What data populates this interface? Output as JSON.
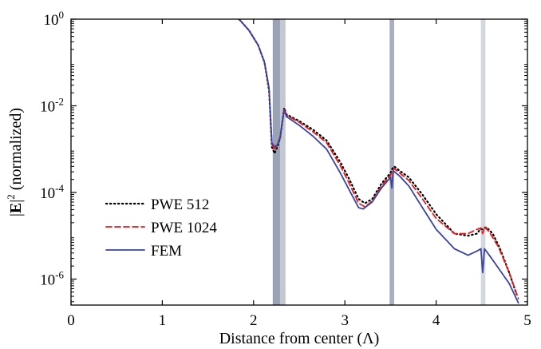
{
  "chart_data": {
    "type": "line",
    "xlabel": "Distance from center (Λ)",
    "ylabel": "|E|² (normalized)",
    "ylabel_parts": {
      "pre": "|",
      "bold": "E",
      "post": "|",
      "sup": "2",
      "suffix": " (normalized)"
    },
    "xlim": [
      0,
      5
    ],
    "ylim_log10": [
      -6.6,
      0
    ],
    "yscale": "log",
    "grid": false,
    "legend_position": "left-middle",
    "x_ticks": [
      {
        "value": 0,
        "label": "0"
      },
      {
        "value": 1,
        "label": "1"
      },
      {
        "value": 2,
        "label": "2"
      },
      {
        "value": 3,
        "label": "3"
      },
      {
        "value": 4,
        "label": "4"
      },
      {
        "value": 5,
        "label": "5"
      }
    ],
    "y_ticks": [
      {
        "exp": 0,
        "base": "10",
        "sup": "0"
      },
      {
        "exp": -2,
        "base": "10",
        "sup": "-2"
      },
      {
        "exp": -4,
        "base": "10",
        "sup": "-4"
      },
      {
        "exp": -6,
        "base": "10",
        "sup": "-6"
      }
    ],
    "shaded_bands": [
      {
        "x0": 2.21,
        "x1": 2.29,
        "color": "#9aa3b3"
      },
      {
        "x0": 2.29,
        "x1": 2.35,
        "color": "#c3c8d1"
      },
      {
        "x0": 3.49,
        "x1": 3.54,
        "color": "#a8b0bd"
      },
      {
        "x0": 4.49,
        "x1": 4.54,
        "color": "#d3d7de"
      }
    ],
    "series": [
      {
        "name": "PWE 512",
        "style": "dotted",
        "color": "#000000",
        "points": [
          [
            0,
            1.0
          ],
          [
            0.3,
            0.96
          ],
          [
            0.6,
            0.88
          ],
          [
            0.9,
            0.76
          ],
          [
            1.2,
            0.59
          ],
          [
            1.5,
            0.38
          ],
          [
            1.7,
            0.2
          ],
          [
            1.85,
            -0.02
          ],
          [
            1.95,
            -0.26
          ],
          [
            2.05,
            -0.6
          ],
          [
            2.12,
            -1.0
          ],
          [
            2.17,
            -1.65
          ],
          [
            2.2,
            -2.95
          ],
          [
            2.23,
            -3.1
          ],
          [
            2.26,
            -2.95
          ],
          [
            2.29,
            -2.75
          ],
          [
            2.31,
            -2.45
          ],
          [
            2.335,
            -2.05
          ],
          [
            2.36,
            -2.2
          ],
          [
            2.5,
            -2.35
          ],
          [
            2.65,
            -2.55
          ],
          [
            2.8,
            -2.8
          ],
          [
            2.95,
            -3.3
          ],
          [
            3.05,
            -3.7
          ],
          [
            3.15,
            -4.15
          ],
          [
            3.22,
            -4.25
          ],
          [
            3.3,
            -4.15
          ],
          [
            3.4,
            -3.8
          ],
          [
            3.5,
            -3.55
          ],
          [
            3.52,
            -3.45
          ],
          [
            3.54,
            -3.4
          ],
          [
            3.6,
            -3.5
          ],
          [
            3.7,
            -3.65
          ],
          [
            3.85,
            -4.05
          ],
          [
            4.0,
            -4.5
          ],
          [
            4.2,
            -4.95
          ],
          [
            4.35,
            -5.0
          ],
          [
            4.45,
            -4.95
          ],
          [
            4.48,
            -4.85
          ],
          [
            4.51,
            -4.85
          ],
          [
            4.55,
            -4.8
          ],
          [
            4.62,
            -4.95
          ],
          [
            4.7,
            -5.3
          ],
          [
            4.8,
            -5.85
          ],
          [
            4.88,
            -6.35
          ]
        ]
      },
      {
        "name": "PWE 1024",
        "style": "dashed",
        "color": "#e41a1c",
        "points": [
          [
            0,
            1.0
          ],
          [
            0.3,
            0.96
          ],
          [
            0.6,
            0.88
          ],
          [
            0.9,
            0.76
          ],
          [
            1.2,
            0.59
          ],
          [
            1.5,
            0.38
          ],
          [
            1.7,
            0.2
          ],
          [
            1.85,
            -0.02
          ],
          [
            1.95,
            -0.26
          ],
          [
            2.05,
            -0.6
          ],
          [
            2.12,
            -1.0
          ],
          [
            2.17,
            -1.6
          ],
          [
            2.2,
            -2.88
          ],
          [
            2.23,
            -3.02
          ],
          [
            2.26,
            -2.9
          ],
          [
            2.29,
            -2.72
          ],
          [
            2.31,
            -2.42
          ],
          [
            2.335,
            -2.07
          ],
          [
            2.36,
            -2.22
          ],
          [
            2.5,
            -2.38
          ],
          [
            2.65,
            -2.6
          ],
          [
            2.8,
            -2.85
          ],
          [
            2.95,
            -3.38
          ],
          [
            3.05,
            -3.8
          ],
          [
            3.15,
            -4.25
          ],
          [
            3.22,
            -4.33
          ],
          [
            3.3,
            -4.2
          ],
          [
            3.4,
            -3.85
          ],
          [
            3.5,
            -3.6
          ],
          [
            3.52,
            -3.5
          ],
          [
            3.54,
            -3.45
          ],
          [
            3.6,
            -3.55
          ],
          [
            3.7,
            -3.72
          ],
          [
            3.85,
            -4.15
          ],
          [
            4.0,
            -4.6
          ],
          [
            4.2,
            -4.95
          ],
          [
            4.35,
            -4.95
          ],
          [
            4.45,
            -4.85
          ],
          [
            4.49,
            -4.82
          ],
          [
            4.51,
            -4.95
          ],
          [
            4.53,
            -4.8
          ],
          [
            4.58,
            -4.9
          ],
          [
            4.68,
            -5.25
          ],
          [
            4.8,
            -5.85
          ],
          [
            4.9,
            -6.45
          ]
        ]
      },
      {
        "name": "FEM",
        "style": "solid",
        "color": "#3a43a3",
        "points": [
          [
            0,
            1.0
          ],
          [
            0.3,
            0.96
          ],
          [
            0.6,
            0.88
          ],
          [
            0.9,
            0.76
          ],
          [
            1.2,
            0.59
          ],
          [
            1.5,
            0.38
          ],
          [
            1.7,
            0.2
          ],
          [
            1.85,
            -0.02
          ],
          [
            1.95,
            -0.26
          ],
          [
            2.05,
            -0.6
          ],
          [
            2.12,
            -1.0
          ],
          [
            2.17,
            -1.6
          ],
          [
            2.2,
            -2.85
          ],
          [
            2.23,
            -2.95
          ],
          [
            2.26,
            -2.9
          ],
          [
            2.29,
            -2.75
          ],
          [
            2.31,
            -2.45
          ],
          [
            2.335,
            -2.1
          ],
          [
            2.36,
            -2.25
          ],
          [
            2.5,
            -2.45
          ],
          [
            2.65,
            -2.7
          ],
          [
            2.8,
            -3.0
          ],
          [
            2.95,
            -3.55
          ],
          [
            3.05,
            -3.95
          ],
          [
            3.15,
            -4.35
          ],
          [
            3.2,
            -4.38
          ],
          [
            3.3,
            -4.22
          ],
          [
            3.4,
            -3.9
          ],
          [
            3.5,
            -3.65
          ],
          [
            3.515,
            -3.9
          ],
          [
            3.53,
            -3.5
          ],
          [
            3.6,
            -3.62
          ],
          [
            3.7,
            -3.85
          ],
          [
            3.85,
            -4.35
          ],
          [
            4.0,
            -4.85
          ],
          [
            4.2,
            -5.3
          ],
          [
            4.35,
            -5.45
          ],
          [
            4.45,
            -5.35
          ],
          [
            4.49,
            -5.3
          ],
          [
            4.51,
            -5.85
          ],
          [
            4.53,
            -5.3
          ],
          [
            4.6,
            -5.5
          ],
          [
            4.7,
            -5.8
          ],
          [
            4.8,
            -6.1
          ],
          [
            4.9,
            -6.55
          ]
        ]
      }
    ]
  }
}
